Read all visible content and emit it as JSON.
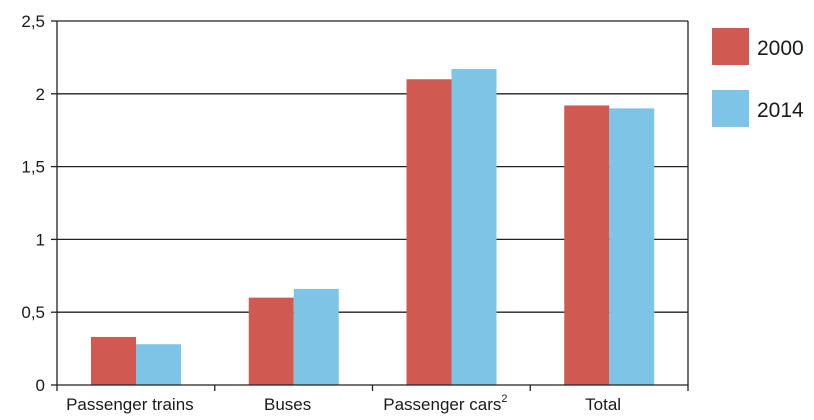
{
  "chart_data": {
    "type": "bar",
    "categories": [
      "Passenger trains",
      "Buses",
      "Passenger cars",
      "Total"
    ],
    "category_superscripts": [
      "",
      "",
      "2",
      ""
    ],
    "series": [
      {
        "name": "2000",
        "values": [
          0.33,
          0.6,
          2.1,
          1.92
        ],
        "color": "#d05a52"
      },
      {
        "name": "2014",
        "values": [
          0.28,
          0.66,
          2.17,
          1.9
        ],
        "color": "#7ec4e6"
      }
    ],
    "y_ticks": [
      "0",
      "0,5",
      "1",
      "1,5",
      "2",
      "2,5"
    ],
    "ylim": [
      0,
      2.5
    ],
    "grid": true,
    "legend_position": "right"
  }
}
